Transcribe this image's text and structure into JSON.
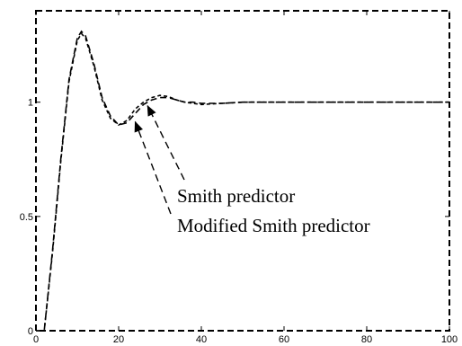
{
  "chart_data": {
    "type": "line",
    "title": "",
    "xlabel": "",
    "ylabel": "",
    "xlim": [
      0,
      100
    ],
    "ylim": [
      0,
      1.4
    ],
    "x_ticks": [
      "0",
      "20",
      "40",
      "60",
      "80",
      "100"
    ],
    "y_ticks": [
      "0",
      "0.5",
      "1"
    ],
    "y_tick_values": [
      0,
      0.5,
      1
    ],
    "grid": false,
    "series": [
      {
        "x": [
          0,
          2,
          4,
          6,
          8,
          10,
          11,
          12,
          14,
          16,
          18,
          20,
          22,
          24,
          26,
          28,
          30,
          32,
          34,
          36,
          38,
          40,
          45,
          50,
          60,
          80,
          100
        ],
        "values": [
          0,
          0,
          0.35,
          0.75,
          1.1,
          1.28,
          1.31,
          1.29,
          1.17,
          1.02,
          0.94,
          0.9,
          0.91,
          0.95,
          0.99,
          1.01,
          1.02,
          1.02,
          1.01,
          1.0,
          1.0,
          0.995,
          0.995,
          1.0,
          1.0,
          1.0,
          1.0
        ],
        "color": "#000000"
      },
      {
        "x": [
          0,
          2,
          4,
          6,
          8,
          10,
          11,
          12,
          14,
          16,
          18,
          20,
          22,
          24,
          26,
          28,
          30,
          32,
          34,
          36,
          38,
          40,
          45,
          50,
          60,
          80,
          100
        ],
        "values": [
          0,
          0,
          0.34,
          0.74,
          1.09,
          1.27,
          1.3,
          1.28,
          1.16,
          1.01,
          0.93,
          0.9,
          0.92,
          0.97,
          1.0,
          1.02,
          1.03,
          1.025,
          1.01,
          1.0,
          0.995,
          0.99,
          0.995,
          1.0,
          1.0,
          1.0,
          1.0
        ],
        "color": "#000000"
      }
    ],
    "annotations": [
      {
        "text": "Smith predictor",
        "target": [
          27,
          1.0
        ]
      },
      {
        "text": "Modified Smith predictor",
        "target": [
          24,
          0.93
        ]
      }
    ]
  }
}
